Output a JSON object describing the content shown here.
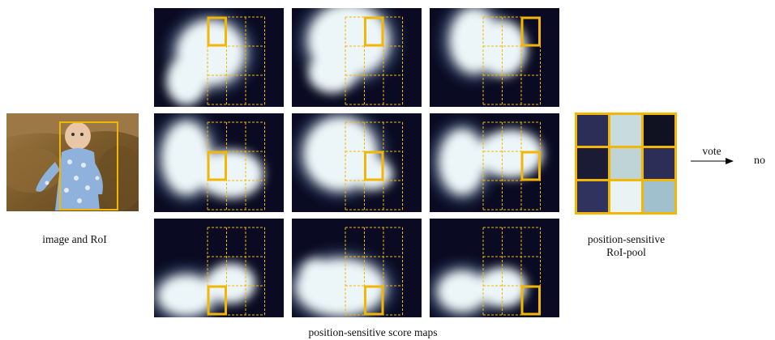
{
  "caption_image": "image and RoI",
  "caption_score_maps": "position-sensitive score maps",
  "caption_pool_line1": "position-sensitive",
  "caption_pool_line2": "RoI-pool",
  "vote_label": "vote",
  "result_label": "no",
  "colors": {
    "roi_box": "#f2b705",
    "grid_dashed": "#f2b705",
    "map_dark": "#0a0b22",
    "map_bright": "#ecf6f8"
  },
  "score_maps": {
    "grid": "3x3",
    "highlighted_cells": [
      {
        "row": 0,
        "col": 0
      },
      {
        "row": 0,
        "col": 1
      },
      {
        "row": 0,
        "col": 2
      },
      {
        "row": 1,
        "col": 0
      },
      {
        "row": 1,
        "col": 1
      },
      {
        "row": 1,
        "col": 2
      },
      {
        "row": 2,
        "col": 0
      },
      {
        "row": 2,
        "col": 1
      },
      {
        "row": 2,
        "col": 2
      }
    ]
  },
  "pooled_cells": [
    "#2c2e57",
    "#c8dcdf",
    "#101121",
    "#1b1b35",
    "#bed4d6",
    "#2c2e57",
    "#30335e",
    "#eaf3f4",
    "#a0c0cd"
  ]
}
